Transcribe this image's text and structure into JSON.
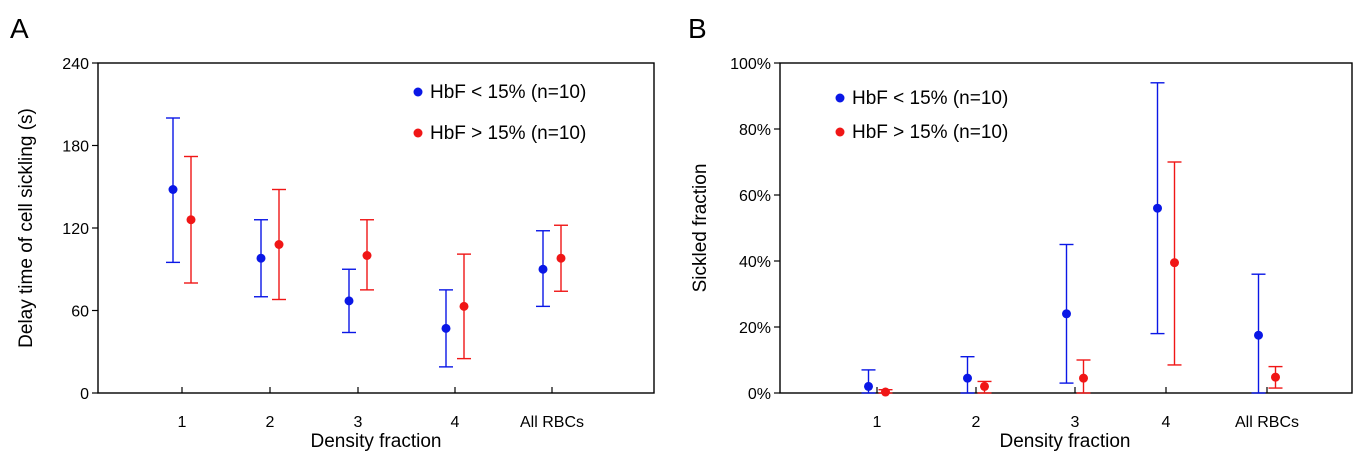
{
  "colors": {
    "low": "#0a17e6",
    "high": "#f01616"
  },
  "chart_data": [
    {
      "type": "scatter",
      "panel_label": "A",
      "xlabel": "Density fraction",
      "ylabel": "Delay time of cell sickling (s)",
      "categories": [
        "1",
        "2",
        "3",
        "4",
        "All RBCs"
      ],
      "ylim": [
        0,
        240
      ],
      "yticks": [
        0,
        60,
        120,
        180,
        240
      ],
      "ytick_labels": [
        "0",
        "60",
        "120",
        "180",
        "240"
      ],
      "legend_position": "top-right",
      "series": [
        {
          "name": "HbF < 15% (n=10)",
          "color": "#0a17e6",
          "values": [
            148,
            98,
            67,
            47,
            90
          ],
          "err_low": [
            95,
            70,
            44,
            19,
            63
          ],
          "err_high": [
            200,
            126,
            90,
            75,
            118
          ]
        },
        {
          "name": "HbF > 15% (n=10)",
          "color": "#f01616",
          "values": [
            126,
            108,
            100,
            63,
            98
          ],
          "err_low": [
            80,
            68,
            75,
            25,
            74
          ],
          "err_high": [
            172,
            148,
            126,
            101,
            122
          ]
        }
      ]
    },
    {
      "type": "scatter",
      "panel_label": "B",
      "xlabel": "Density fraction",
      "ylabel": "Sickled fraction",
      "categories": [
        "1",
        "2",
        "3",
        "4",
        "All RBCs"
      ],
      "ylim": [
        0,
        100
      ],
      "yticks": [
        0,
        20,
        40,
        60,
        80,
        100
      ],
      "ytick_labels": [
        "0%",
        "20%",
        "40%",
        "60%",
        "80%",
        "100%"
      ],
      "legend_position": "top-left",
      "series": [
        {
          "name": "HbF < 15% (n=10)",
          "color": "#0a17e6",
          "values": [
            2,
            4.5,
            24,
            56,
            17.5
          ],
          "err_low": [
            0,
            0,
            3,
            18,
            0
          ],
          "err_high": [
            7,
            11,
            45,
            94,
            36
          ]
        },
        {
          "name": "HbF > 15% (n=10)",
          "color": "#f01616",
          "values": [
            0.3,
            2,
            4.5,
            39.5,
            4.8
          ],
          "err_low": [
            0,
            0,
            0,
            8.5,
            1.5
          ],
          "err_high": [
            1,
            3.5,
            10,
            70,
            8
          ]
        }
      ]
    }
  ]
}
